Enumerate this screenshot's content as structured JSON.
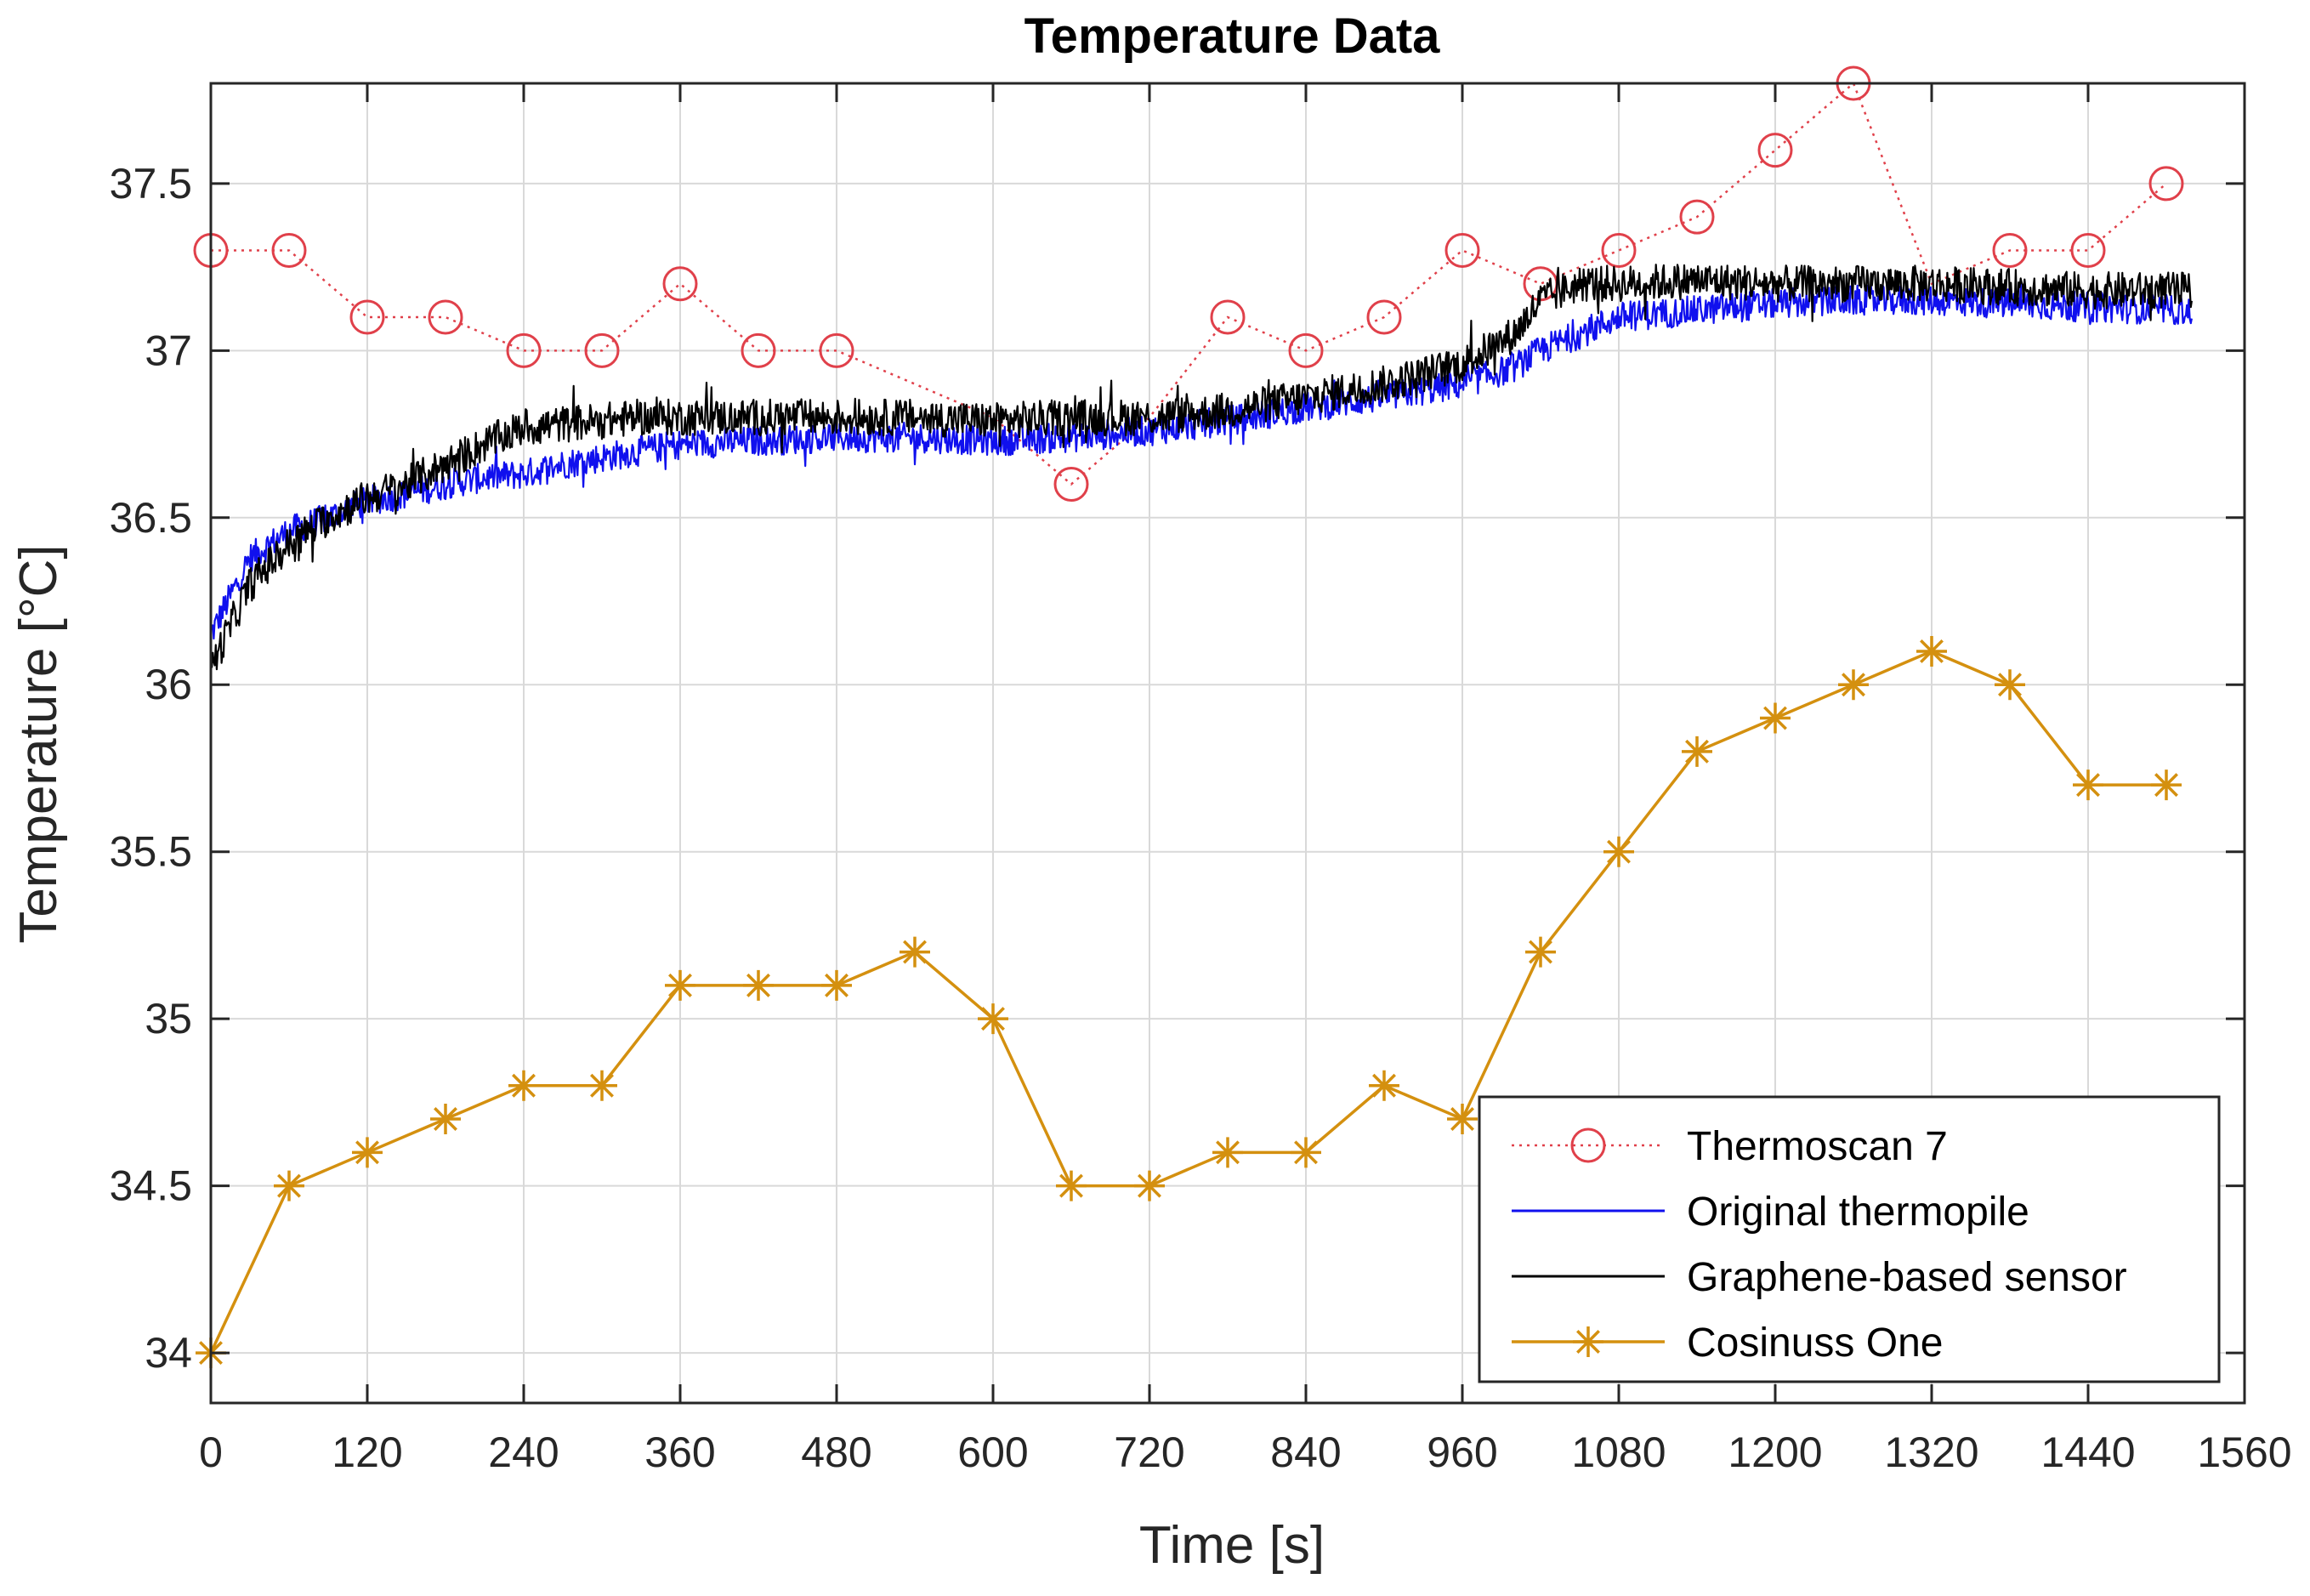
{
  "chart_data": {
    "type": "line",
    "title": "Temperature Data",
    "xlabel": "Time [s]",
    "ylabel": "Temperature [°C]",
    "xlim": [
      0,
      1560
    ],
    "ylim": [
      33.85,
      37.8
    ],
    "xticks": [
      0,
      120,
      240,
      360,
      480,
      600,
      720,
      840,
      960,
      1080,
      1200,
      1320,
      1440,
      1560
    ],
    "yticks": [
      34,
      34.5,
      35,
      35.5,
      36,
      36.5,
      37,
      37.5
    ],
    "ytick_labels": [
      "34",
      "34.5",
      "35",
      "35.5",
      "36",
      "36.5",
      "37",
      "37.5"
    ],
    "grid": true,
    "legend_location": "bottom-right",
    "series": [
      {
        "name": "Thermoscan 7",
        "style": "dotted-circle",
        "color": "#e0404a",
        "x": [
          0,
          60,
          120,
          180,
          240,
          300,
          360,
          420,
          480,
          540,
          600,
          660,
          720,
          780,
          840,
          900,
          960,
          1020,
          1080,
          1140,
          1200,
          1260,
          1320,
          1380,
          1440,
          1500
        ],
        "y": [
          37.3,
          37.3,
          37.1,
          37.1,
          37.0,
          37.0,
          37.2,
          37.0,
          37.0,
          36.9,
          36.8,
          36.6,
          36.8,
          37.1,
          37.0,
          37.1,
          37.3,
          37.2,
          37.3,
          37.4,
          37.6,
          37.8,
          37.2,
          37.3,
          37.3,
          37.5
        ],
        "markers_hidden_at": [
          540,
          600,
          720,
          1320
        ]
      },
      {
        "name": "Original thermopile",
        "style": "noisy-line",
        "color": "#1010ee",
        "x": [
          0,
          30,
          60,
          90,
          120,
          150,
          180,
          210,
          240,
          270,
          300,
          330,
          360,
          420,
          480,
          540,
          600,
          660,
          720,
          780,
          840,
          900,
          960,
          1000,
          1020,
          1050,
          1080,
          1140,
          1200,
          1260,
          1320,
          1380,
          1440,
          1520
        ],
        "y": [
          36.15,
          36.38,
          36.46,
          36.5,
          36.55,
          36.57,
          36.6,
          36.62,
          36.63,
          36.66,
          36.68,
          36.7,
          36.72,
          36.73,
          36.74,
          36.74,
          36.73,
          36.74,
          36.76,
          36.79,
          36.83,
          36.86,
          36.9,
          36.95,
          37.0,
          37.05,
          37.1,
          37.12,
          37.14,
          37.15,
          37.15,
          37.14,
          37.13,
          37.12
        ],
        "noise": 0.045
      },
      {
        "name": "Graphene-based sensor",
        "style": "noisy-line",
        "color": "#000000",
        "x": [
          0,
          30,
          60,
          90,
          120,
          150,
          180,
          210,
          240,
          270,
          300,
          330,
          360,
          420,
          480,
          540,
          600,
          660,
          720,
          780,
          840,
          900,
          960,
          1000,
          1020,
          1050,
          1080,
          1140,
          1200,
          1260,
          1320,
          1380,
          1440,
          1520
        ],
        "y": [
          36.05,
          36.3,
          36.42,
          36.5,
          36.56,
          36.6,
          36.66,
          36.72,
          36.77,
          36.78,
          36.79,
          36.8,
          36.8,
          36.8,
          36.8,
          36.8,
          36.79,
          36.8,
          36.8,
          36.82,
          36.86,
          36.9,
          36.96,
          37.05,
          37.15,
          37.2,
          37.2,
          37.21,
          37.2,
          37.2,
          37.2,
          37.19,
          37.18,
          37.18
        ],
        "noise": 0.055
      },
      {
        "name": "Cosinuss One",
        "style": "solid-star",
        "color": "#d4900f",
        "x": [
          0,
          60,
          120,
          180,
          240,
          300,
          360,
          420,
          480,
          540,
          600,
          660,
          720,
          780,
          840,
          900,
          960,
          1020,
          1080,
          1140,
          1200,
          1260,
          1320,
          1380,
          1440,
          1500
        ],
        "y": [
          34.0,
          34.5,
          34.6,
          34.7,
          34.8,
          34.8,
          35.1,
          35.1,
          35.1,
          35.2,
          35.0,
          34.5,
          34.5,
          34.6,
          34.6,
          34.8,
          34.7,
          35.2,
          35.5,
          35.8,
          35.9,
          36.0,
          36.1,
          36.0,
          35.7,
          35.7
        ]
      }
    ]
  }
}
